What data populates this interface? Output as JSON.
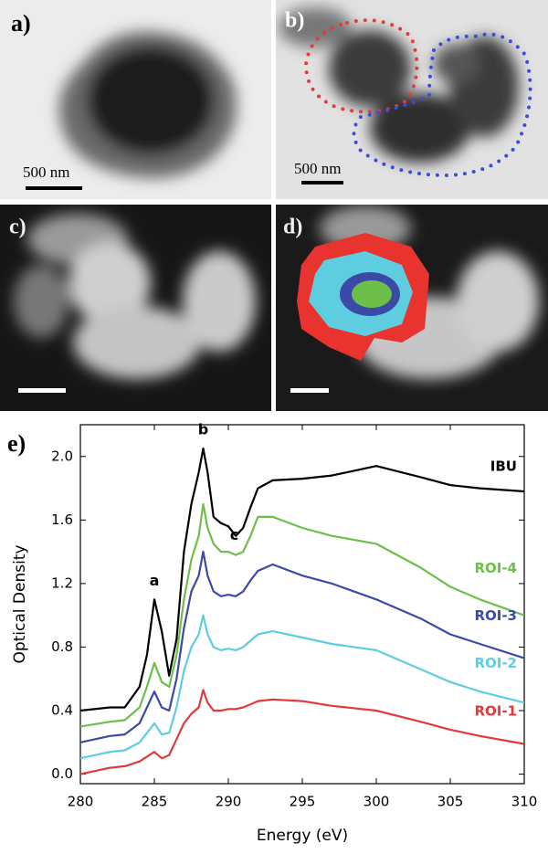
{
  "panel_labels": [
    "a)",
    "b)",
    "c)",
    "d)",
    "e)"
  ],
  "scale_bar_labels": [
    "500 nm",
    "500 nm"
  ],
  "chart_data": {
    "type": "line",
    "xlabel": "Energy (eV)",
    "ylabel": "Optical Density",
    "annotations": [
      "a",
      "b",
      "c"
    ],
    "x": [
      280,
      282,
      283,
      284,
      284.5,
      285,
      285.5,
      286,
      286.5,
      287,
      287.5,
      288,
      288.3,
      288.6,
      289,
      289.5,
      290,
      290.5,
      291,
      291.5,
      292,
      293,
      295,
      297,
      300,
      303,
      305,
      307,
      310
    ],
    "series": [
      {
        "name": "IBU",
        "color": "#000000",
        "values": [
          0.4,
          0.42,
          0.42,
          0.55,
          0.75,
          1.1,
          0.9,
          0.62,
          0.85,
          1.4,
          1.7,
          1.9,
          2.05,
          1.9,
          1.62,
          1.58,
          1.56,
          1.5,
          1.55,
          1.68,
          1.8,
          1.85,
          1.86,
          1.88,
          1.94,
          1.87,
          1.82,
          1.8,
          1.78
        ]
      },
      {
        "name": "ROI-4",
        "color": "#6cc04a",
        "values": [
          0.3,
          0.33,
          0.34,
          0.42,
          0.55,
          0.7,
          0.58,
          0.55,
          0.75,
          1.1,
          1.35,
          1.5,
          1.7,
          1.55,
          1.45,
          1.4,
          1.4,
          1.38,
          1.4,
          1.5,
          1.62,
          1.62,
          1.55,
          1.5,
          1.45,
          1.3,
          1.18,
          1.1,
          1.0
        ]
      },
      {
        "name": "ROI-3",
        "color": "#3b4aa6",
        "values": [
          0.2,
          0.24,
          0.25,
          0.32,
          0.42,
          0.52,
          0.42,
          0.4,
          0.6,
          0.92,
          1.15,
          1.25,
          1.4,
          1.25,
          1.15,
          1.12,
          1.13,
          1.12,
          1.15,
          1.22,
          1.28,
          1.32,
          1.25,
          1.2,
          1.1,
          0.98,
          0.88,
          0.82,
          0.73
        ]
      },
      {
        "name": "ROI-2",
        "color": "#5fcde0",
        "values": [
          0.1,
          0.14,
          0.15,
          0.2,
          0.26,
          0.32,
          0.25,
          0.26,
          0.42,
          0.65,
          0.8,
          0.88,
          1.0,
          0.88,
          0.8,
          0.78,
          0.79,
          0.78,
          0.8,
          0.84,
          0.88,
          0.9,
          0.86,
          0.82,
          0.78,
          0.66,
          0.58,
          0.52,
          0.45
        ]
      },
      {
        "name": "ROI-1",
        "color": "#e03a3a",
        "values": [
          0.0,
          0.04,
          0.05,
          0.08,
          0.11,
          0.14,
          0.1,
          0.12,
          0.22,
          0.32,
          0.38,
          0.42,
          0.53,
          0.45,
          0.4,
          0.4,
          0.41,
          0.41,
          0.42,
          0.44,
          0.46,
          0.47,
          0.46,
          0.43,
          0.4,
          0.33,
          0.28,
          0.24,
          0.19
        ]
      }
    ],
    "xlim": [
      280,
      310
    ],
    "xticks": [
      280,
      285,
      290,
      295,
      300,
      305,
      310
    ],
    "ylim": [
      -0.06,
      2.2
    ],
    "yticks": [
      {
        "value": 0,
        "label": "0.0"
      },
      0.4,
      0.8,
      1.2,
      1.6,
      {
        "value": 2,
        "label": "2.0"
      }
    ],
    "grid": false
  }
}
